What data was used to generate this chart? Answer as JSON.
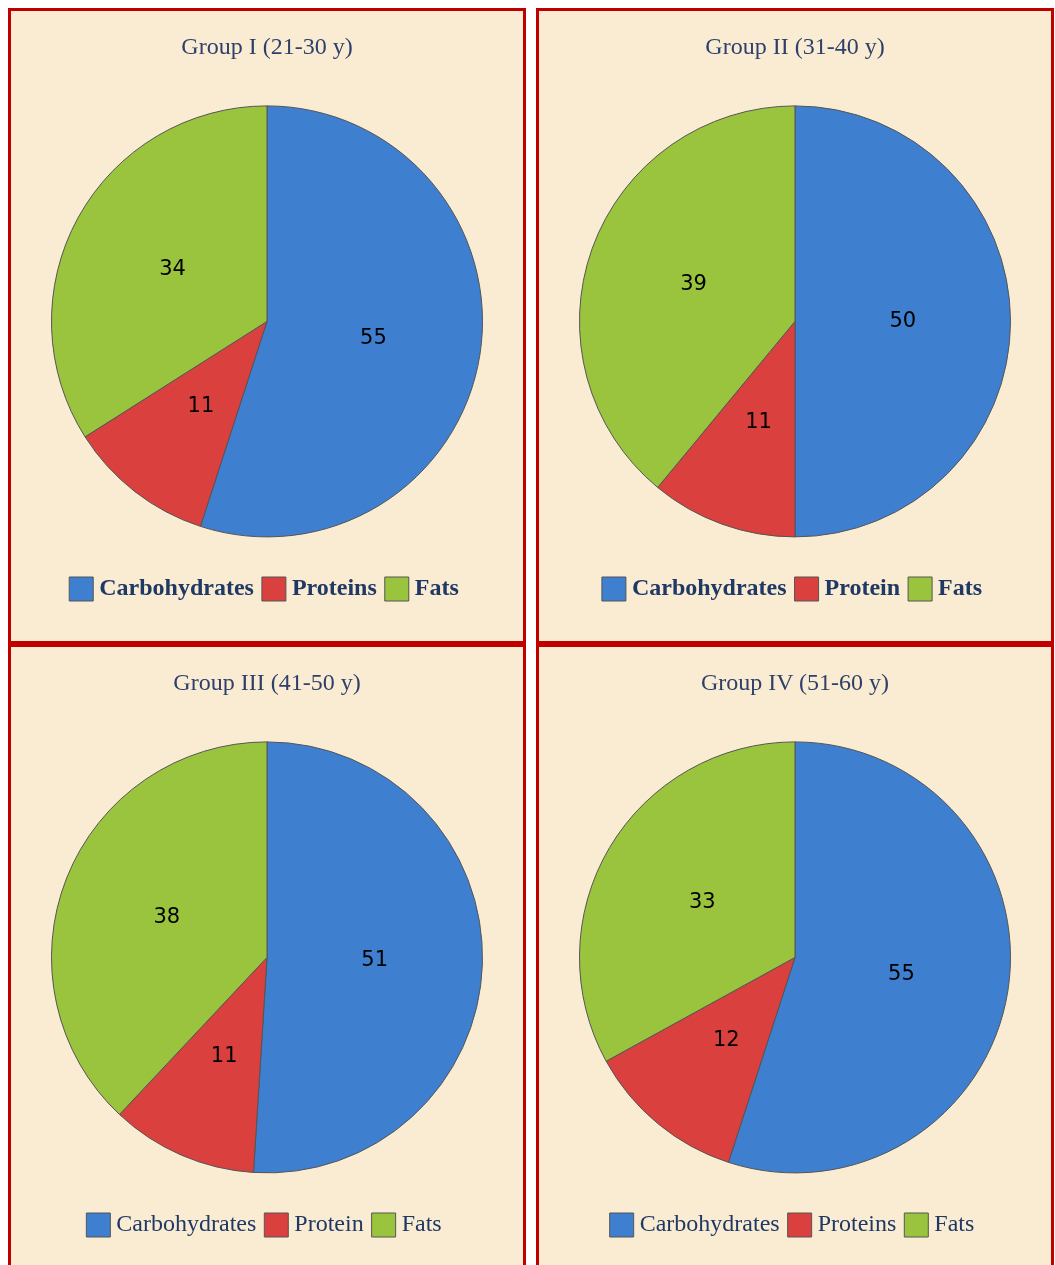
{
  "chart_data": [
    {
      "type": "pie",
      "title": "Group I (21-30 y)",
      "categories": [
        "Carbohydrates",
        "Proteins",
        "Fats"
      ],
      "values": [
        55,
        11,
        34
      ],
      "colors": [
        "#3f7fd0",
        "#d9403e",
        "#9bc43e"
      ],
      "data_labels": true,
      "legend": "bottom"
    },
    {
      "type": "pie",
      "title": "Group II (31-40 y)",
      "categories": [
        "Carbohydrates",
        "Protein",
        "Fats"
      ],
      "values": [
        50,
        11,
        39
      ],
      "colors": [
        "#3f7fd0",
        "#d9403e",
        "#9bc43e"
      ],
      "data_labels": true,
      "legend": "bottom"
    },
    {
      "type": "pie",
      "title": "Group III (41-50 y)",
      "categories": [
        "Carbohydrates",
        "Protein",
        "Fats"
      ],
      "values": [
        51,
        11,
        38
      ],
      "colors": [
        "#3f7fd0",
        "#d9403e",
        "#9bc43e"
      ],
      "data_labels": true,
      "legend": "bottom"
    },
    {
      "type": "pie",
      "title": "Group IV (51-60 y)",
      "categories": [
        "Carbohydrates",
        "Proteins",
        "Fats"
      ],
      "values": [
        55,
        12,
        33
      ],
      "colors": [
        "#3f7fd0",
        "#d9403e",
        "#9bc43e"
      ],
      "data_labels": true,
      "legend": "bottom"
    }
  ]
}
